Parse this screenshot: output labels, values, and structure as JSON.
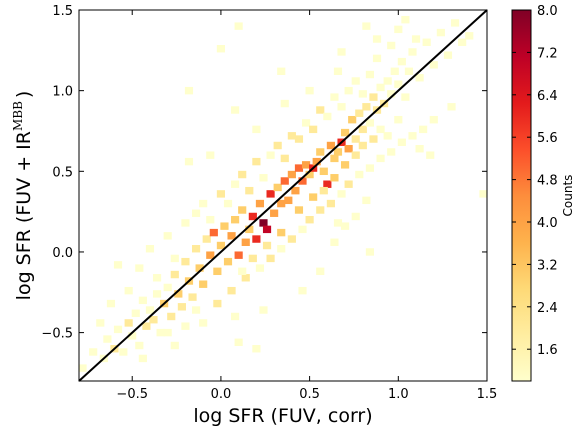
{
  "chart_data": {
    "type": "heatmap",
    "xlabel": "log SFR (FUV, corr)",
    "ylabel_main": "log SFR (FUV + IR",
    "ylabel_sup": "MBB",
    "ylabel_close": ")",
    "xlim": [
      -0.8,
      1.5
    ],
    "ylim": [
      -0.8,
      1.5
    ],
    "xticks": [
      -0.5,
      0.0,
      0.5,
      1.0,
      1.5
    ],
    "xtick_labels": [
      "−0.5",
      "0.0",
      "0.5",
      "1.0",
      "1.5"
    ],
    "yticks": [
      -0.5,
      0.0,
      0.5,
      1.0,
      1.5
    ],
    "ytick_labels": [
      "−0.5",
      "0.0",
      "0.5",
      "1.0",
      "1.5"
    ],
    "bin_width": 0.046,
    "one_to_one_line": {
      "from": [
        -0.8,
        -0.8
      ],
      "to": [
        1.5,
        1.5
      ],
      "color": "#000000"
    },
    "colorbar": {
      "label": "Counts",
      "range": [
        1.0,
        8.0
      ],
      "ticks": [
        1.6,
        2.4,
        3.2,
        4.0,
        4.8,
        5.6,
        6.4,
        7.2,
        8.0
      ],
      "tick_labels": [
        "1.6",
        "2.4",
        "3.2",
        "4.0",
        "4.8",
        "5.6",
        "6.4",
        "7.2",
        "8.0"
      ],
      "colormap": [
        "#ffffcc",
        "#ffeda0",
        "#fed976",
        "#feb24c",
        "#fd8d3c",
        "#fc4e2a",
        "#e31a1c",
        "#bd0026",
        "#800026"
      ]
    },
    "bins": [
      [
        -0.78,
        -0.72,
        1
      ],
      [
        -0.72,
        -0.62,
        1
      ],
      [
        -0.66,
        -0.66,
        1
      ],
      [
        -0.64,
        -0.54,
        1
      ],
      [
        -0.6,
        -0.6,
        2
      ],
      [
        -0.58,
        -0.48,
        1
      ],
      [
        -0.55,
        -0.62,
        1
      ],
      [
        -0.52,
        -0.44,
        2
      ],
      [
        -0.5,
        -0.52,
        1
      ],
      [
        -0.48,
        -0.38,
        1
      ],
      [
        -0.46,
        -0.58,
        1
      ],
      [
        -0.44,
        -0.3,
        1
      ],
      [
        -0.42,
        -0.46,
        2
      ],
      [
        -0.4,
        -0.36,
        1
      ],
      [
        -0.38,
        -0.42,
        2
      ],
      [
        -0.36,
        -0.26,
        1
      ],
      [
        -0.34,
        -0.5,
        1
      ],
      [
        -0.32,
        -0.32,
        3
      ],
      [
        -0.3,
        -0.22,
        1
      ],
      [
        -0.28,
        -0.4,
        2
      ],
      [
        -0.26,
        -0.14,
        2
      ],
      [
        -0.24,
        -0.26,
        3
      ],
      [
        -0.22,
        -0.34,
        2
      ],
      [
        -0.2,
        -0.06,
        2
      ],
      [
        -0.18,
        -0.18,
        3
      ],
      [
        -0.16,
        -0.28,
        2
      ],
      [
        -0.14,
        0.02,
        2
      ],
      [
        -0.12,
        -0.1,
        3
      ],
      [
        -0.1,
        -0.2,
        3
      ],
      [
        -0.08,
        0.08,
        2
      ],
      [
        -0.06,
        -0.02,
        4
      ],
      [
        -0.04,
        0.12,
        5
      ],
      [
        -0.02,
        -0.12,
        3
      ],
      [
        0.0,
        0.04,
        3
      ],
      [
        0.02,
        0.16,
        3
      ],
      [
        0.04,
        -0.06,
        3
      ],
      [
        0.06,
        0.1,
        4
      ],
      [
        0.08,
        0.2,
        3
      ],
      [
        0.1,
        -0.02,
        5
      ],
      [
        0.12,
        0.26,
        3
      ],
      [
        0.14,
        0.06,
        4
      ],
      [
        0.16,
        0.14,
        3
      ],
      [
        0.18,
        0.22,
        6
      ],
      [
        0.2,
        0.08,
        6
      ],
      [
        0.22,
        0.3,
        4
      ],
      [
        0.24,
        0.18,
        8
      ],
      [
        0.26,
        0.14,
        7
      ],
      [
        0.28,
        0.36,
        6
      ],
      [
        0.3,
        0.24,
        4
      ],
      [
        0.32,
        0.4,
        3
      ],
      [
        0.34,
        0.3,
        4
      ],
      [
        0.36,
        0.44,
        5
      ],
      [
        0.38,
        0.32,
        4
      ],
      [
        0.4,
        0.48,
        4
      ],
      [
        0.42,
        0.38,
        4
      ],
      [
        0.44,
        0.52,
        5
      ],
      [
        0.46,
        0.44,
        5
      ],
      [
        0.48,
        0.54,
        4
      ],
      [
        0.5,
        0.48,
        3
      ],
      [
        0.52,
        0.52,
        6
      ],
      [
        0.54,
        0.56,
        4
      ],
      [
        0.56,
        0.62,
        3
      ],
      [
        0.58,
        0.5,
        3
      ],
      [
        0.6,
        0.42,
        6
      ],
      [
        0.62,
        0.66,
        4
      ],
      [
        0.64,
        0.58,
        3
      ],
      [
        0.66,
        0.62,
        3
      ],
      [
        0.68,
        0.68,
        6
      ],
      [
        0.7,
        0.74,
        3
      ],
      [
        0.72,
        0.64,
        4
      ],
      [
        0.74,
        0.82,
        3
      ],
      [
        0.76,
        0.7,
        2
      ],
      [
        0.78,
        0.86,
        2
      ],
      [
        0.8,
        0.76,
        2
      ],
      [
        0.82,
        0.9,
        2
      ],
      [
        0.84,
        0.8,
        1
      ],
      [
        0.86,
        0.96,
        2
      ],
      [
        0.88,
        0.88,
        2
      ],
      [
        0.9,
        1.02,
        1
      ],
      [
        0.92,
        0.92,
        2
      ],
      [
        0.94,
        1.06,
        1
      ],
      [
        0.96,
        0.98,
        1
      ],
      [
        0.98,
        1.12,
        1
      ],
      [
        1.0,
        1.04,
        1
      ],
      [
        1.02,
        1.18,
        1
      ],
      [
        1.04,
        0.96,
        1
      ],
      [
        1.06,
        1.12,
        1
      ],
      [
        1.08,
        1.24,
        1
      ],
      [
        1.12,
        1.08,
        1
      ],
      [
        1.16,
        1.3,
        1
      ],
      [
        1.2,
        1.16,
        1
      ],
      [
        1.24,
        1.36,
        1
      ],
      [
        1.28,
        1.22,
        1
      ],
      [
        1.32,
        1.42,
        1
      ],
      [
        1.36,
        1.3,
        1
      ],
      [
        1.4,
        1.34,
        1
      ],
      [
        -0.68,
        -0.44,
        1
      ],
      [
        -0.62,
        -0.32,
        1
      ],
      [
        -0.58,
        -0.08,
        1
      ],
      [
        -0.52,
        -0.24,
        1
      ],
      [
        -0.46,
        -0.1,
        1
      ],
      [
        -0.4,
        0.02,
        1
      ],
      [
        -0.36,
        -0.16,
        1
      ],
      [
        -0.3,
        0.1,
        1
      ],
      [
        -0.26,
        -0.04,
        1
      ],
      [
        -0.2,
        0.18,
        1
      ],
      [
        -0.14,
        0.24,
        1
      ],
      [
        -0.1,
        0.3,
        1
      ],
      [
        -0.06,
        0.2,
        1
      ],
      [
        0.0,
        0.36,
        2
      ],
      [
        0.04,
        0.3,
        1
      ],
      [
        0.08,
        0.42,
        1
      ],
      [
        0.12,
        0.48,
        2
      ],
      [
        0.16,
        0.38,
        2
      ],
      [
        0.2,
        0.56,
        2
      ],
      [
        0.24,
        0.46,
        1
      ],
      [
        0.28,
        0.6,
        1
      ],
      [
        0.32,
        0.66,
        2
      ],
      [
        0.36,
        0.58,
        2
      ],
      [
        0.4,
        0.72,
        2
      ],
      [
        0.44,
        0.7,
        2
      ],
      [
        0.48,
        0.8,
        1
      ],
      [
        0.52,
        0.76,
        2
      ],
      [
        0.56,
        0.88,
        2
      ],
      [
        0.6,
        0.84,
        1
      ],
      [
        0.64,
        0.96,
        1
      ],
      [
        0.68,
        0.9,
        1
      ],
      [
        0.72,
        1.0,
        1
      ],
      [
        0.76,
        1.06,
        1
      ],
      [
        0.8,
        0.98,
        1
      ],
      [
        0.84,
        1.1,
        1
      ],
      [
        0.88,
        1.2,
        1
      ],
      [
        0.96,
        1.28,
        1
      ],
      [
        1.0,
        1.38,
        1
      ],
      [
        1.04,
        1.44,
        1
      ],
      [
        1.1,
        1.32,
        1
      ],
      [
        -0.18,
        0.56,
        1
      ],
      [
        -0.06,
        0.6,
        1
      ],
      [
        0.08,
        0.88,
        1
      ],
      [
        0.2,
        0.76,
        1
      ],
      [
        0.36,
        0.92,
        1
      ],
      [
        0.5,
        1.0,
        1
      ],
      [
        0.66,
        1.12,
        1
      ],
      [
        0.88,
        1.32,
        1
      ],
      [
        -0.3,
        -0.5,
        1
      ],
      [
        -0.2,
        -0.46,
        1
      ],
      [
        -0.1,
        -0.44,
        1
      ],
      [
        -0.02,
        -0.32,
        2
      ],
      [
        0.06,
        -0.24,
        2
      ],
      [
        0.14,
        -0.16,
        2
      ],
      [
        0.22,
        -0.1,
        1
      ],
      [
        0.28,
        -0.04,
        2
      ],
      [
        0.34,
        0.02,
        1
      ],
      [
        0.4,
        0.08,
        2
      ],
      [
        0.46,
        0.14,
        1
      ],
      [
        0.5,
        0.2,
        2
      ],
      [
        0.56,
        0.26,
        2
      ],
      [
        0.62,
        0.3,
        2
      ],
      [
        0.68,
        0.36,
        1
      ],
      [
        0.72,
        0.42,
        2
      ],
      [
        0.78,
        0.48,
        1
      ],
      [
        0.84,
        0.52,
        1
      ],
      [
        0.9,
        0.58,
        1
      ],
      [
        0.96,
        0.62,
        1
      ],
      [
        1.02,
        0.68,
        1
      ],
      [
        1.08,
        0.72,
        1
      ],
      [
        1.14,
        0.76,
        1
      ],
      [
        1.2,
        0.82,
        1
      ],
      [
        0.94,
        0.72,
        1
      ],
      [
        1.0,
        0.82,
        1
      ],
      [
        0.66,
        0.18,
        1
      ],
      [
        0.76,
        0.22,
        1
      ],
      [
        0.82,
        0.32,
        1
      ],
      [
        0.24,
        -0.36,
        1
      ],
      [
        0.2,
        -0.6,
        1
      ],
      [
        0.46,
        -0.24,
        1
      ],
      [
        0.56,
        -0.12,
        1
      ],
      [
        0.64,
        0.06,
        1
      ],
      [
        0.84,
        0.0,
        1
      ],
      [
        0.7,
        0.16,
        1
      ],
      [
        1.48,
        0.36,
        1
      ],
      [
        1.3,
        0.9,
        1
      ],
      [
        1.18,
        0.6,
        1
      ],
      [
        1.12,
        0.64,
        1
      ],
      [
        0.08,
        -0.4,
        1
      ],
      [
        -0.14,
        -0.36,
        1
      ],
      [
        0.1,
        -0.56,
        1
      ],
      [
        -0.26,
        -0.58,
        1
      ],
      [
        -0.44,
        -0.66,
        1
      ],
      [
        0.0,
        1.26,
        1
      ],
      [
        0.34,
        1.12,
        1
      ],
      [
        0.1,
        1.4,
        1
      ],
      [
        -0.18,
        1.0,
        1
      ],
      [
        0.68,
        1.24,
        1
      ],
      [
        0.82,
        1.4,
        1
      ],
      [
        0.34,
        0.12,
        3
      ],
      [
        0.26,
        0.04,
        2
      ],
      [
        0.18,
        -0.04,
        2
      ],
      [
        0.12,
        -0.12,
        1
      ],
      [
        0.44,
        0.26,
        3
      ],
      [
        0.52,
        0.34,
        3
      ],
      [
        0.58,
        0.38,
        2
      ],
      [
        0.64,
        0.46,
        3
      ],
      [
        0.7,
        0.54,
        3
      ],
      [
        0.76,
        0.6,
        2
      ],
      [
        0.8,
        0.66,
        2
      ],
      [
        0.86,
        0.7,
        2
      ],
      [
        0.9,
        0.76,
        1
      ]
    ]
  }
}
